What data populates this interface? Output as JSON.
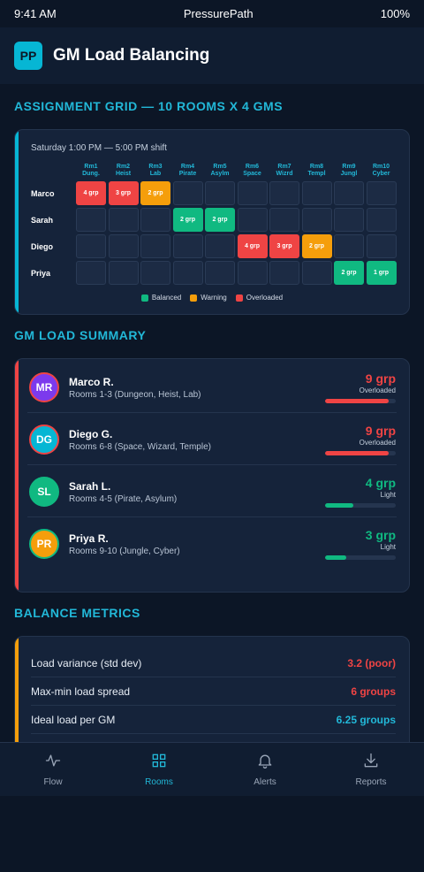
{
  "status_bar": {
    "time": "9:41 AM",
    "app_name": "PressurePath",
    "battery": "100%"
  },
  "header": {
    "logo_initials": "PP",
    "title": "GM Load Balancing"
  },
  "assignment_grid": {
    "section_title": "ASSIGNMENT GRID — 10 ROOMS X 4 GMS",
    "subtitle": "Saturday 1:00 PM — 5:00 PM shift",
    "columns": [
      {
        "line1": "Rm1",
        "line2": "Dung."
      },
      {
        "line1": "Rm2",
        "line2": "Heist"
      },
      {
        "line1": "Rm3",
        "line2": "Lab"
      },
      {
        "line1": "Rm4",
        "line2": "Pirate"
      },
      {
        "line1": "Rm5",
        "line2": "Asylm"
      },
      {
        "line1": "Rm6",
        "line2": "Space"
      },
      {
        "line1": "Rm7",
        "line2": "Wizrd"
      },
      {
        "line1": "Rm8",
        "line2": "Templ"
      },
      {
        "line1": "Rm9",
        "line2": "Jungl"
      },
      {
        "line1": "Rm10",
        "line2": "Cyber"
      }
    ],
    "rows": [
      {
        "gm": "Marco",
        "cells": [
          {
            "text": "4 grp",
            "status": "overloaded"
          },
          {
            "text": "3 grp",
            "status": "overloaded"
          },
          {
            "text": "2 grp",
            "status": "warning"
          },
          {
            "text": "",
            "status": "empty"
          },
          {
            "text": "",
            "status": "empty"
          },
          {
            "text": "",
            "status": "empty"
          },
          {
            "text": "",
            "status": "empty"
          },
          {
            "text": "",
            "status": "empty"
          },
          {
            "text": "",
            "status": "empty"
          },
          {
            "text": "",
            "status": "empty"
          }
        ]
      },
      {
        "gm": "Sarah",
        "cells": [
          {
            "text": "",
            "status": "empty"
          },
          {
            "text": "",
            "status": "empty"
          },
          {
            "text": "",
            "status": "empty"
          },
          {
            "text": "2 grp",
            "status": "balanced"
          },
          {
            "text": "2 grp",
            "status": "balanced"
          },
          {
            "text": "",
            "status": "empty"
          },
          {
            "text": "",
            "status": "empty"
          },
          {
            "text": "",
            "status": "empty"
          },
          {
            "text": "",
            "status": "empty"
          },
          {
            "text": "",
            "status": "empty"
          }
        ]
      },
      {
        "gm": "Diego",
        "cells": [
          {
            "text": "",
            "status": "empty"
          },
          {
            "text": "",
            "status": "empty"
          },
          {
            "text": "",
            "status": "empty"
          },
          {
            "text": "",
            "status": "empty"
          },
          {
            "text": "",
            "status": "empty"
          },
          {
            "text": "4 grp",
            "status": "overloaded"
          },
          {
            "text": "3 grp",
            "status": "overloaded"
          },
          {
            "text": "2 grp",
            "status": "warning"
          },
          {
            "text": "",
            "status": "empty"
          },
          {
            "text": "",
            "status": "empty"
          }
        ]
      },
      {
        "gm": "Priya",
        "cells": [
          {
            "text": "",
            "status": "empty"
          },
          {
            "text": "",
            "status": "empty"
          },
          {
            "text": "",
            "status": "empty"
          },
          {
            "text": "",
            "status": "empty"
          },
          {
            "text": "",
            "status": "empty"
          },
          {
            "text": "",
            "status": "empty"
          },
          {
            "text": "",
            "status": "empty"
          },
          {
            "text": "",
            "status": "empty"
          },
          {
            "text": "2 grp",
            "status": "balanced"
          },
          {
            "text": "1 grp",
            "status": "balanced"
          }
        ]
      }
    ],
    "legend": [
      {
        "label": "Balanced",
        "color": "#10b981"
      },
      {
        "label": "Warning",
        "color": "#f59e0b"
      },
      {
        "label": "Overloaded",
        "color": "#ef4444"
      }
    ]
  },
  "load_summary": {
    "section_title": "GM LOAD SUMMARY",
    "gms": [
      {
        "initials": "MR",
        "name": "Marco R.",
        "rooms": "Rooms 1-3 (Dungeon, Heist, Lab)",
        "load": "9 grp",
        "status": "Overloaded",
        "load_fraction": 0.9,
        "color": "#ef4444",
        "avatar_bg": "#7c3aed"
      },
      {
        "initials": "DG",
        "name": "Diego G.",
        "rooms": "Rooms 6-8 (Space, Wizard, Temple)",
        "load": "9 grp",
        "status": "Overloaded",
        "load_fraction": 0.9,
        "color": "#ef4444",
        "avatar_bg": "#06b6d4"
      },
      {
        "initials": "SL",
        "name": "Sarah L.",
        "rooms": "Rooms 4-5 (Pirate, Asylum)",
        "load": "4 grp",
        "status": "Light",
        "load_fraction": 0.4,
        "color": "#10b981",
        "avatar_bg": "#10b981"
      },
      {
        "initials": "PR",
        "name": "Priya R.",
        "rooms": "Rooms 9-10 (Jungle, Cyber)",
        "load": "3 grp",
        "status": "Light",
        "load_fraction": 0.3,
        "color": "#10b981",
        "avatar_bg": "#f59e0b"
      }
    ]
  },
  "balance_metrics": {
    "section_title": "BALANCE METRICS",
    "metrics": [
      {
        "label": "Load variance (std dev)",
        "value": "3.2 (poor)",
        "color": "#ef4444"
      },
      {
        "label": "Max-min load spread",
        "value": "6 groups",
        "color": "#ef4444"
      },
      {
        "label": "Ideal load per GM",
        "value": "6.25 groups",
        "color": "#22b8d8"
      }
    ]
  },
  "tab_bar": {
    "tabs": [
      {
        "label": "Flow",
        "icon": "activity-icon",
        "active": false
      },
      {
        "label": "Rooms",
        "icon": "grid-icon",
        "active": true
      },
      {
        "label": "Alerts",
        "icon": "bell-icon",
        "active": false
      },
      {
        "label": "Reports",
        "icon": "download-icon",
        "active": false
      }
    ]
  },
  "colors": {
    "accent": "#22b8d8",
    "overloaded": "#ef4444",
    "warning": "#f59e0b",
    "balanced": "#10b981",
    "background": "#0c1626"
  }
}
